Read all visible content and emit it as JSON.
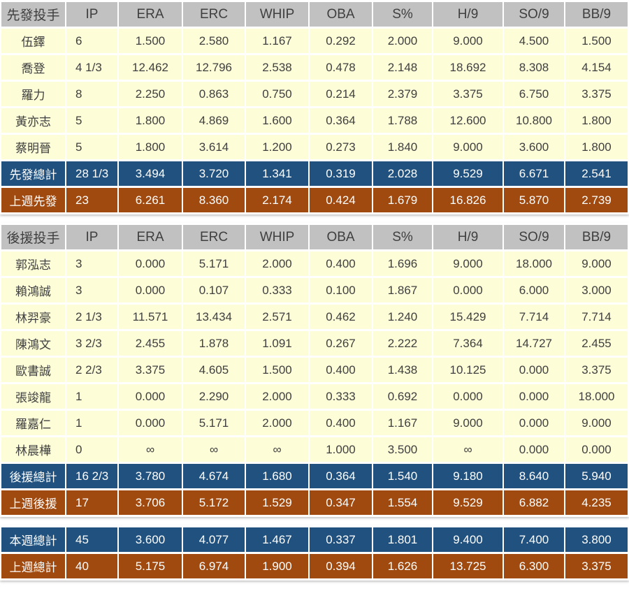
{
  "colors": {
    "header_bg": "#c1c1c1",
    "player_row_bg": "#fdfdd8",
    "total_current_bg": "#21517e",
    "total_previous_bg": "#a04a10",
    "text_dark": "#3f3f3f",
    "text_light": "#ffffff"
  },
  "chart_data": [
    {
      "type": "table",
      "id": "starters-table",
      "header_label": "先發投手",
      "columns": [
        "IP",
        "ERA",
        "ERC",
        "WHIP",
        "OBA",
        "S%",
        "H/9",
        "SO/9",
        "BB/9"
      ],
      "rows": [
        {
          "label": "伍鐸",
          "row_type": "player",
          "values": [
            "6",
            "1.500",
            "2.580",
            "1.167",
            "0.292",
            "2.000",
            "9.000",
            "4.500",
            "1.500"
          ]
        },
        {
          "label": "喬登",
          "row_type": "player",
          "values": [
            "4 1/3",
            "12.462",
            "12.796",
            "2.538",
            "0.478",
            "2.148",
            "18.692",
            "8.308",
            "4.154"
          ]
        },
        {
          "label": "羅力",
          "row_type": "player",
          "values": [
            "8",
            "2.250",
            "0.863",
            "0.750",
            "0.214",
            "2.379",
            "3.375",
            "6.750",
            "3.375"
          ]
        },
        {
          "label": "黃亦志",
          "row_type": "player",
          "values": [
            "5",
            "1.800",
            "4.869",
            "1.600",
            "0.364",
            "1.788",
            "12.600",
            "10.800",
            "1.800"
          ]
        },
        {
          "label": "蔡明晉",
          "row_type": "player",
          "values": [
            "5",
            "1.800",
            "3.614",
            "1.200",
            "0.273",
            "1.840",
            "9.000",
            "3.600",
            "1.800"
          ]
        },
        {
          "label": "先發總計",
          "row_type": "total-current",
          "values": [
            "28 1/3",
            "3.494",
            "3.720",
            "1.341",
            "0.319",
            "2.028",
            "9.529",
            "6.671",
            "2.541"
          ]
        },
        {
          "label": "上週先發",
          "row_type": "total-previous",
          "values": [
            "23",
            "6.261",
            "8.360",
            "2.174",
            "0.424",
            "1.679",
            "16.826",
            "5.870",
            "2.739"
          ]
        }
      ]
    },
    {
      "type": "table",
      "id": "relievers-table",
      "header_label": "後援投手",
      "columns": [
        "IP",
        "ERA",
        "ERC",
        "WHIP",
        "OBA",
        "S%",
        "H/9",
        "SO/9",
        "BB/9"
      ],
      "rows": [
        {
          "label": "郭泓志",
          "row_type": "player",
          "values": [
            "3",
            "0.000",
            "5.171",
            "2.000",
            "0.400",
            "1.696",
            "9.000",
            "18.000",
            "9.000"
          ]
        },
        {
          "label": "賴鴻誠",
          "row_type": "player",
          "values": [
            "3",
            "0.000",
            "0.107",
            "0.333",
            "0.100",
            "1.867",
            "0.000",
            "6.000",
            "3.000"
          ]
        },
        {
          "label": "林羿豪",
          "row_type": "player",
          "values": [
            "2 1/3",
            "11.571",
            "13.434",
            "2.571",
            "0.462",
            "1.240",
            "15.429",
            "7.714",
            "7.714"
          ]
        },
        {
          "label": "陳鴻文",
          "row_type": "player",
          "values": [
            "3 2/3",
            "2.455",
            "1.878",
            "1.091",
            "0.267",
            "2.222",
            "7.364",
            "14.727",
            "2.455"
          ]
        },
        {
          "label": "歐書誠",
          "row_type": "player",
          "values": [
            "2 2/3",
            "3.375",
            "4.605",
            "1.500",
            "0.400",
            "1.438",
            "10.125",
            "0.000",
            "3.375"
          ]
        },
        {
          "label": "張竣龍",
          "row_type": "player",
          "values": [
            "1",
            "0.000",
            "2.290",
            "2.000",
            "0.333",
            "0.692",
            "0.000",
            "0.000",
            "18.000"
          ]
        },
        {
          "label": "羅嘉仁",
          "row_type": "player",
          "values": [
            "1",
            "0.000",
            "5.171",
            "2.000",
            "0.400",
            "1.167",
            "9.000",
            "0.000",
            "9.000"
          ]
        },
        {
          "label": "林晨樺",
          "row_type": "player",
          "values": [
            "0",
            "∞",
            "∞",
            "∞",
            "1.000",
            "3.500",
            "∞",
            "0.000",
            "0.000"
          ]
        },
        {
          "label": "後援總計",
          "row_type": "total-current",
          "values": [
            "16 2/3",
            "3.780",
            "4.674",
            "1.680",
            "0.364",
            "1.540",
            "9.180",
            "8.640",
            "5.940"
          ]
        },
        {
          "label": "上週後援",
          "row_type": "total-previous",
          "values": [
            "17",
            "3.706",
            "5.172",
            "1.529",
            "0.347",
            "1.554",
            "9.529",
            "6.882",
            "4.235"
          ]
        }
      ]
    },
    {
      "type": "table",
      "id": "weekly-totals-table",
      "header_label": null,
      "columns": null,
      "rows": [
        {
          "label": "本週總計",
          "row_type": "total-current",
          "values": [
            "45",
            "3.600",
            "4.077",
            "1.467",
            "0.337",
            "1.801",
            "9.400",
            "7.400",
            "3.800"
          ]
        },
        {
          "label": "上週總計",
          "row_type": "total-previous",
          "values": [
            "40",
            "5.175",
            "6.974",
            "1.900",
            "0.394",
            "1.626",
            "13.725",
            "6.300",
            "3.375"
          ]
        }
      ]
    }
  ]
}
